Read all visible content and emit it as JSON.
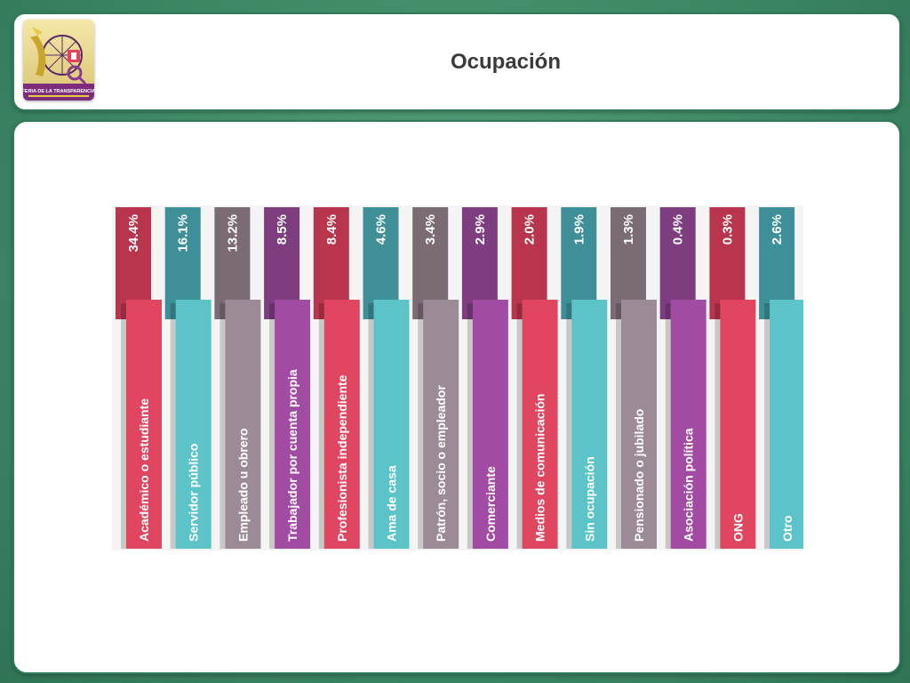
{
  "page": {
    "title": "Ocupación"
  },
  "logo": {
    "icon": "transparency-fair-logo-icon",
    "text": "FERIA DE LA TRANSPARENCIA"
  },
  "colors": {
    "tab_cycle": [
      "#b8354d",
      "#3f8f99",
      "#7a6b75",
      "#7d3d7e"
    ],
    "band_cycle": [
      "#e14660",
      "#5cc3c9",
      "#9c8b96",
      "#a14ba2"
    ]
  },
  "chart_data": {
    "type": "bar",
    "categories": [
      "Académico o estudiante",
      "Servidor público",
      "Empleado u obrero",
      "Trabajador por cuenta propia",
      "Profesionista independiente",
      "Ama de casa",
      "Patrón, socio o empleador",
      "Comerciante",
      "Medios de comunicación",
      "Sin ocupación",
      "Pensionado o jubilado",
      "Asociación política",
      "ONG",
      "Otro"
    ],
    "values": [
      34.4,
      16.1,
      13.2,
      8.5,
      8.4,
      4.6,
      3.4,
      2.9,
      2.0,
      1.9,
      1.3,
      0.4,
      0.3,
      2.6
    ],
    "value_labels": [
      "34.4%",
      "16.1%",
      "13.2%",
      "8.5%",
      "8.4%",
      "4.6%",
      "3.4%",
      "2.9%",
      "2.0%",
      "1.9%",
      "1.3%",
      "0.4%",
      "0.3%",
      "2.6%"
    ],
    "title": "",
    "xlabel": "",
    "ylabel": "",
    "grid": false,
    "legend": "none"
  }
}
